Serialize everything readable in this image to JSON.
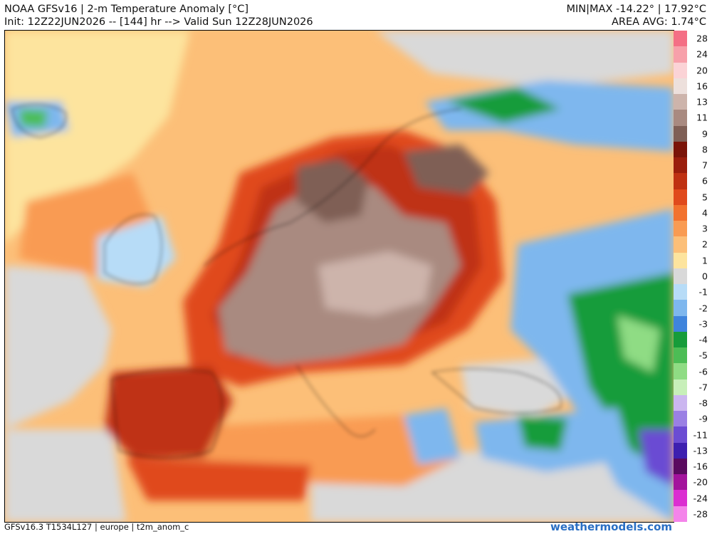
{
  "header": {
    "title": "NOAA GFSv16 | 2-m Temperature Anomaly [°C]",
    "init_line": "Init: 12Z22JUN2026 -- [144] hr --> Valid Sun 12Z28JUN2026",
    "minmax": "MIN|MAX -14.22° | 17.92°C",
    "area_avg": "AREA AVG: 1.74°C"
  },
  "legend": {
    "levels": [
      {
        "label": "28",
        "color": "#f46f85"
      },
      {
        "label": "24",
        "color": "#f7a0aa"
      },
      {
        "label": "20",
        "color": "#fbd3d6"
      },
      {
        "label": "16",
        "color": "#ede0dc"
      },
      {
        "label": "13",
        "color": "#cdb4ab"
      },
      {
        "label": "11",
        "color": "#a98a80"
      },
      {
        "label": "9",
        "color": "#7f5f55"
      },
      {
        "label": "8",
        "color": "#7a1408"
      },
      {
        "label": "7",
        "color": "#9a1e0c"
      },
      {
        "label": "6",
        "color": "#bf3112"
      },
      {
        "label": "5",
        "color": "#e04a1c"
      },
      {
        "label": "4",
        "color": "#f2722e"
      },
      {
        "label": "3",
        "color": "#f99b52"
      },
      {
        "label": "2",
        "color": "#fcbf78"
      },
      {
        "label": "1",
        "color": "#fde49e"
      },
      {
        "label": "0",
        "color": "#d9d9d9"
      },
      {
        "label": "-1",
        "color": "#b7dcf7"
      },
      {
        "label": "-2",
        "color": "#7eb7ee"
      },
      {
        "label": "-3",
        "color": "#3f84dc"
      },
      {
        "label": "-4",
        "color": "#169c3a"
      },
      {
        "label": "-5",
        "color": "#4cbd55"
      },
      {
        "label": "-6",
        "color": "#8fdc84"
      },
      {
        "label": "-7",
        "color": "#c7efb9"
      },
      {
        "label": "-8",
        "color": "#cbb6f0"
      },
      {
        "label": "-9",
        "color": "#9a80e4"
      },
      {
        "label": "-11",
        "color": "#6b4cd3"
      },
      {
        "label": "-13",
        "color": "#3d1fb0"
      },
      {
        "label": "-16",
        "color": "#5a0a5f"
      },
      {
        "label": "-20",
        "color": "#a3139c"
      },
      {
        "label": "-24",
        "color": "#db2ed1"
      },
      {
        "label": "-28",
        "color": "#f484ea"
      }
    ]
  },
  "footer": {
    "left": "GFSv16.3 T1534L127 | europe | t2m_anom_c",
    "brand": "weathermodels.com"
  },
  "colors": {
    "sea": "#d9d9d9",
    "border": "#111111",
    "brand": "#2a6fc4"
  }
}
